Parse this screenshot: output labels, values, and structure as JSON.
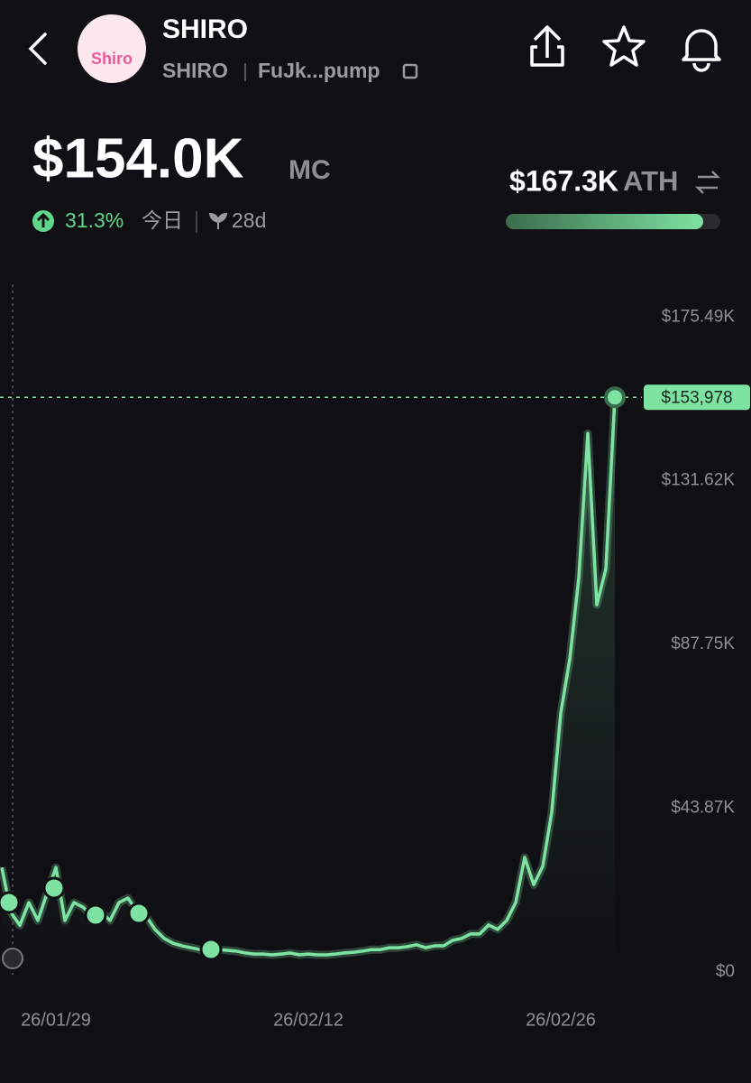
{
  "header": {
    "token_name": "SHIRO",
    "logo_text": "Shiro",
    "symbol": "SHIRO",
    "address": "FuJk...pump"
  },
  "stats": {
    "market_cap": "$154.0K",
    "market_cap_unit": "MC",
    "change": "31.3%",
    "change_period": "今日",
    "age": "28d",
    "ath": "$167.3K",
    "ath_unit": "ATH"
  },
  "chart_data": {
    "type": "line",
    "categories": [
      null,
      null,
      null,
      null,
      null,
      null,
      "26/01/29",
      null,
      null,
      null,
      null,
      null,
      null,
      null,
      null,
      null,
      null,
      null,
      null,
      null,
      null,
      null,
      null,
      null,
      null,
      null,
      null,
      null,
      null,
      null,
      null,
      null,
      null,
      null,
      "26/02/12",
      null,
      null,
      null,
      null,
      null,
      null,
      null,
      null,
      null,
      null,
      null,
      null,
      null,
      null,
      null,
      null,
      null,
      null,
      null,
      null,
      null,
      null,
      null,
      null,
      null,
      null,
      null,
      "26/02/26",
      null,
      null,
      null,
      null,
      null,
      null
    ],
    "series": [
      {
        "name": "SHIRO",
        "color": "#7ee3a2",
        "values": [
          28000,
          16000,
          12500,
          18600,
          13800,
          21000,
          28000,
          13800,
          18600,
          17400,
          15000,
          16200,
          13800,
          18600,
          19800,
          16200,
          15000,
          11400,
          9000,
          7700,
          7000,
          6500,
          6000,
          6500,
          6000,
          5800,
          5600,
          5100,
          4800,
          4800,
          4600,
          4800,
          5100,
          4600,
          4800,
          4600,
          4600,
          4800,
          5100,
          5300,
          5600,
          6000,
          6000,
          6500,
          6500,
          6800,
          7300,
          6500,
          7000,
          7000,
          8500,
          9000,
          10200,
          10200,
          12600,
          11400,
          13800,
          18600,
          30700,
          23400,
          28300,
          42800,
          69400,
          83900,
          105600,
          144300,
          98400,
          108000,
          153978
        ]
      }
    ],
    "ylim": [
      0,
      185000
    ],
    "yticks": [
      {
        "value": 0,
        "label": "$0"
      },
      {
        "value": 43870,
        "label": "$43.87K"
      },
      {
        "value": 87750,
        "label": "$87.75K"
      },
      {
        "value": 131620,
        "label": "$131.62K"
      },
      {
        "value": 175490,
        "label": "$175.49K"
      }
    ],
    "price_line": {
      "value": 153978,
      "label": "$153,978"
    },
    "grid": false
  }
}
